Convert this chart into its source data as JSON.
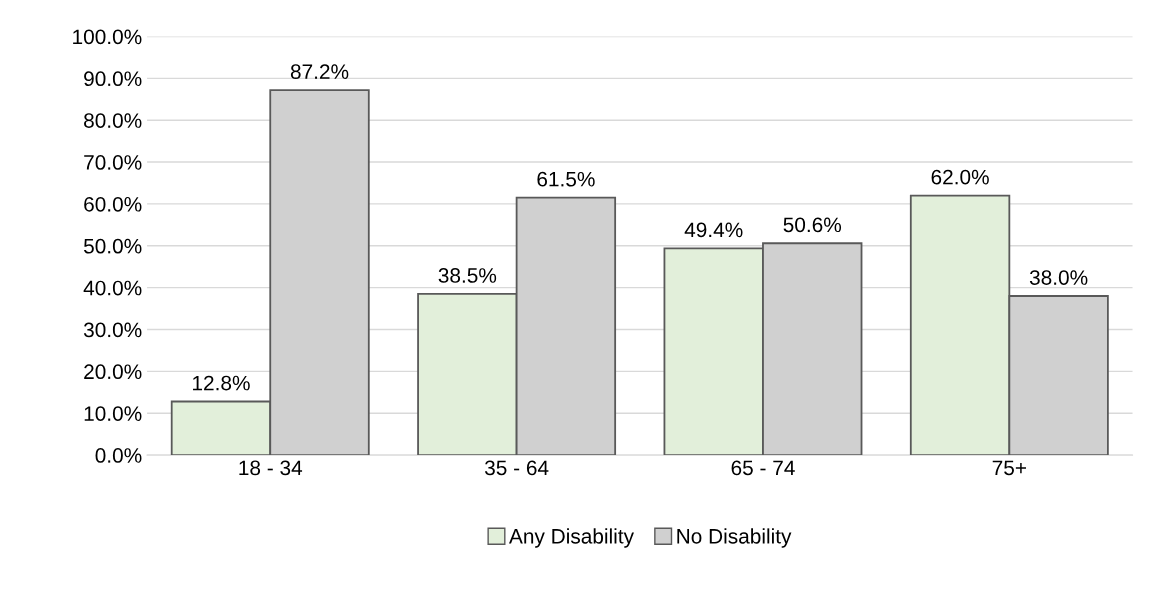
{
  "chart_data": {
    "type": "bar",
    "categories": [
      "18 - 34",
      "35 - 64",
      "65 - 74",
      "75+"
    ],
    "series": [
      {
        "name": "Any Disability",
        "color": "#e2efda",
        "values": [
          12.8,
          38.5,
          49.4,
          62.0
        ],
        "value_labels": [
          "12.8%",
          "38.5%",
          "49.4%",
          "62.0%"
        ]
      },
      {
        "name": "No Disability",
        "color": "#d0d0d0",
        "values": [
          87.2,
          61.5,
          50.6,
          38.0
        ],
        "value_labels": [
          "87.2%",
          "61.5%",
          "50.6%",
          "38.0%"
        ]
      }
    ],
    "ylim": [
      0,
      100
    ],
    "yticks": [
      {
        "value": 0,
        "label": "0.0%"
      },
      {
        "value": 10,
        "label": "10.0%"
      },
      {
        "value": 20,
        "label": "20.0%"
      },
      {
        "value": 30,
        "label": "30.0%"
      },
      {
        "value": 40,
        "label": "40.0%"
      },
      {
        "value": 50,
        "label": "50.0%"
      },
      {
        "value": 60,
        "label": "60.0%"
      },
      {
        "value": 70,
        "label": "70.0%"
      },
      {
        "value": 80,
        "label": "80.0%"
      },
      {
        "value": 90,
        "label": "90.0%"
      },
      {
        "value": 100,
        "label": "100.0%"
      }
    ],
    "grid": "y",
    "legend": "bottom"
  }
}
